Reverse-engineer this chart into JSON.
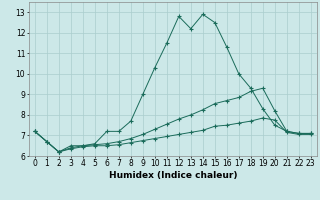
{
  "xlabel": "Humidex (Indice chaleur)",
  "x_values": [
    0,
    1,
    2,
    3,
    4,
    5,
    6,
    7,
    8,
    9,
    10,
    11,
    12,
    13,
    14,
    15,
    16,
    17,
    18,
    19,
    20,
    21,
    22,
    23
  ],
  "line1": [
    7.2,
    6.7,
    6.2,
    6.5,
    6.5,
    6.6,
    7.2,
    7.2,
    7.7,
    9.0,
    10.3,
    11.5,
    12.8,
    12.2,
    12.9,
    12.5,
    11.3,
    10.0,
    9.3,
    8.3,
    7.5,
    7.2,
    7.1,
    7.1
  ],
  "line2": [
    7.2,
    6.7,
    6.2,
    6.4,
    6.5,
    6.55,
    6.6,
    6.7,
    6.85,
    7.05,
    7.3,
    7.55,
    7.8,
    8.0,
    8.25,
    8.55,
    8.7,
    8.85,
    9.15,
    9.3,
    8.2,
    7.2,
    7.1,
    7.1
  ],
  "line3": [
    7.2,
    6.7,
    6.2,
    6.35,
    6.45,
    6.5,
    6.5,
    6.55,
    6.65,
    6.75,
    6.85,
    6.95,
    7.05,
    7.15,
    7.25,
    7.45,
    7.5,
    7.6,
    7.7,
    7.85,
    7.75,
    7.15,
    7.05,
    7.05
  ],
  "line_color": "#1a6b5a",
  "bg_color": "#cce8e8",
  "grid_color": "#aacece",
  "ylim": [
    6.0,
    13.5
  ],
  "xlim": [
    -0.5,
    23.5
  ],
  "yticks": [
    6,
    7,
    8,
    9,
    10,
    11,
    12,
    13
  ],
  "xticks": [
    0,
    1,
    2,
    3,
    4,
    5,
    6,
    7,
    8,
    9,
    10,
    11,
    12,
    13,
    14,
    15,
    16,
    17,
    18,
    19,
    20,
    21,
    22,
    23
  ],
  "xlabel_fontsize": 6.5,
  "tick_fontsize": 5.5
}
